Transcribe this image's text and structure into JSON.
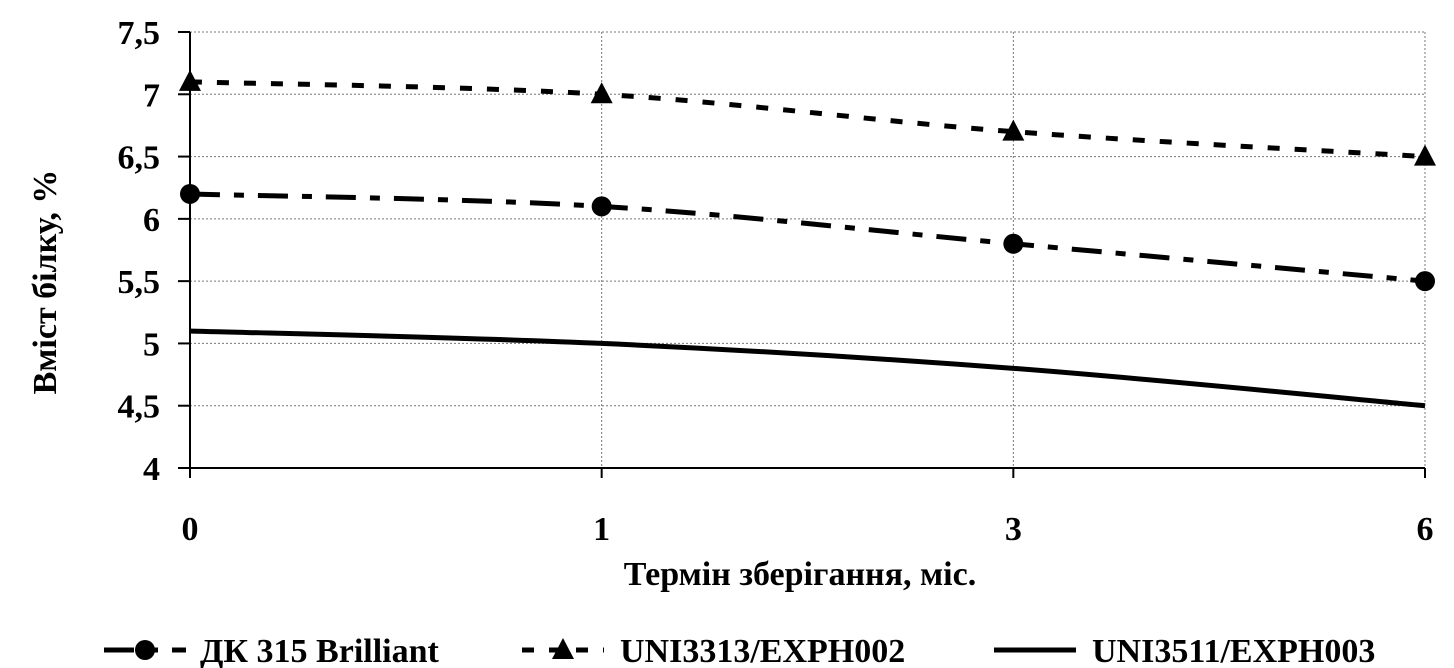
{
  "chart_data": {
    "type": "line",
    "categories": [
      "0",
      "1",
      "3",
      "6"
    ],
    "xlabel": "Термін зберігання, міс.",
    "ylabel": "Вміст білку, %",
    "ylim": [
      4,
      7.5
    ],
    "yticks": [
      "4",
      "4,5",
      "5",
      "5,5",
      "6",
      "6,5",
      "7",
      "7,5"
    ],
    "grid": true,
    "legend_position": "bottom",
    "series": [
      {
        "name": "ДК 315 Brilliant",
        "values": [
          6.2,
          6.1,
          5.8,
          5.5
        ],
        "marker": "circle",
        "dash": "long-dash-dot"
      },
      {
        "name": "UNI3313/EXPH002",
        "values": [
          7.1,
          7.0,
          6.7,
          6.5
        ],
        "marker": "triangle",
        "dash": "short-dash"
      },
      {
        "name": "UNI3511/EXPH003",
        "values": [
          5.1,
          5.0,
          4.8,
          4.5
        ],
        "marker": "none",
        "dash": "solid"
      }
    ]
  }
}
